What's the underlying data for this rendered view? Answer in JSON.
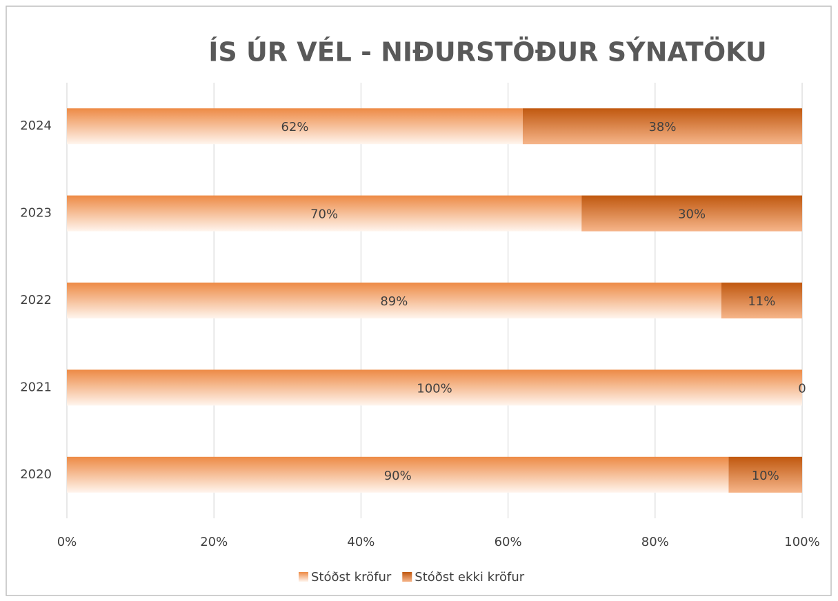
{
  "chart_data": {
    "type": "stacked-bar-horizontal",
    "title": "ÍS ÚR VÉL - NIÐURSTÖÐUR SÝNATÖKU",
    "categories": [
      "2020",
      "2021",
      "2022",
      "2023",
      "2024"
    ],
    "series": [
      {
        "name": "Stóðst kröfur",
        "color": "#ed8a45",
        "values": [
          90,
          100,
          89,
          70,
          62
        ],
        "value_labels": [
          "90%",
          "100%",
          "89%",
          "70%",
          "62%"
        ]
      },
      {
        "name": "Stóðst ekki kröfur",
        "color": "#c0580f",
        "values": [
          10,
          0,
          11,
          30,
          38
        ],
        "value_labels": [
          "10%",
          "0",
          "11%",
          "30%",
          "38%"
        ]
      }
    ],
    "xlim": [
      0,
      100
    ],
    "xticks": [
      {
        "value": 0,
        "label": "0%"
      },
      {
        "value": 20,
        "label": "20%"
      },
      {
        "value": 40,
        "label": "40%"
      },
      {
        "value": 60,
        "label": "60%"
      },
      {
        "value": 80,
        "label": "80%"
      },
      {
        "value": 100,
        "label": "100%"
      }
    ],
    "grid": true,
    "legend": "bottom"
  }
}
